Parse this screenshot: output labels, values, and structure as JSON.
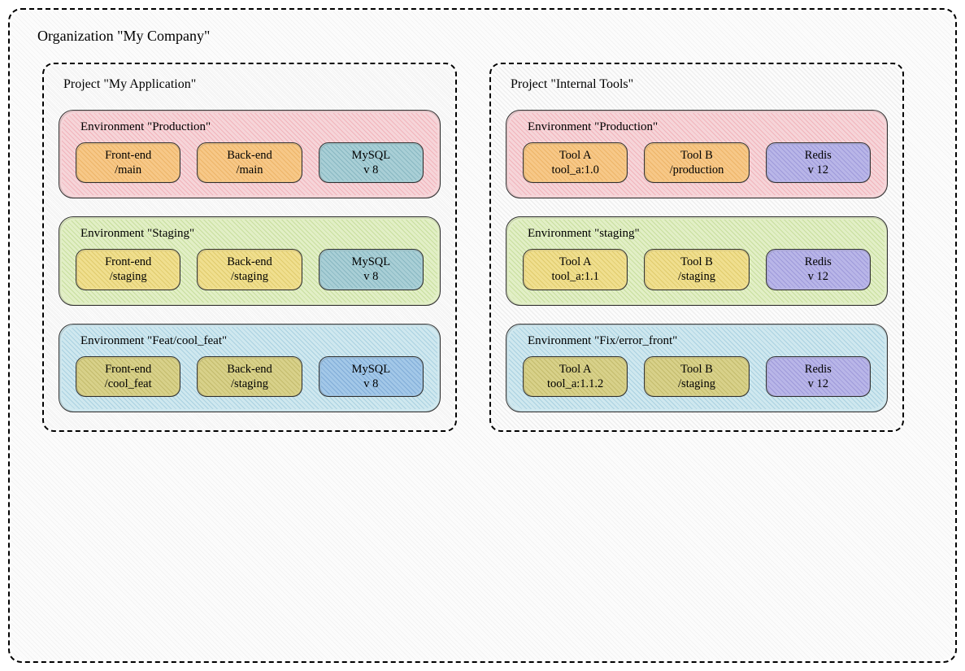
{
  "organization": {
    "title": "Organization \"My Company\""
  },
  "colors": {
    "env_production_fill": "#f6d5d9",
    "env_production_hatch": "rgba(220,60,80,0.22)",
    "env_staging_fill": "#e2efc6",
    "env_staging_hatch": "rgba(120,170,40,0.25)",
    "env_feature_fill": "#cfe8ef",
    "env_feature_hatch": "rgba(60,140,180,0.25)",
    "svc_orange_fill": "#f7c888",
    "svc_orange_hatch": "rgba(210,130,20,0.28)",
    "svc_teal_fill": "#a9cfd6",
    "svc_teal_hatch": "rgba(50,120,140,0.28)",
    "svc_yellow_fill": "#f0df8f",
    "svc_yellow_hatch": "rgba(180,150,20,0.28)",
    "svc_olive_fill": "#d8d18a",
    "svc_olive_hatch": "rgba(140,130,30,0.28)",
    "svc_blue_fill": "#a3c8e8",
    "svc_blue_hatch": "rgba(40,100,170,0.28)",
    "svc_purple_fill": "#b9b6e8",
    "svc_purple_hatch": "rgba(90,80,180,0.28)"
  },
  "projects": [
    {
      "title": "Project \"My Application\"",
      "environments": [
        {
          "title": "Environment \"Production\"",
          "fill": "env_production",
          "services": [
            {
              "line1": "Front-end",
              "line2": "/main",
              "color": "svc_orange"
            },
            {
              "line1": "Back-end",
              "line2": "/main",
              "color": "svc_orange"
            },
            {
              "line1": "MySQL",
              "line2": "v 8",
              "color": "svc_teal"
            }
          ]
        },
        {
          "title": "Environment \"Staging\"",
          "fill": "env_staging",
          "services": [
            {
              "line1": "Front-end",
              "line2": "/staging",
              "color": "svc_yellow"
            },
            {
              "line1": "Back-end",
              "line2": "/staging",
              "color": "svc_yellow"
            },
            {
              "line1": "MySQL",
              "line2": "v 8",
              "color": "svc_teal"
            }
          ]
        },
        {
          "title": "Environment \"Feat/cool_feat\"",
          "fill": "env_feature",
          "services": [
            {
              "line1": "Front-end",
              "line2": "/cool_feat",
              "color": "svc_olive"
            },
            {
              "line1": "Back-end",
              "line2": "/staging",
              "color": "svc_olive"
            },
            {
              "line1": "MySQL",
              "line2": "v 8",
              "color": "svc_blue"
            }
          ]
        }
      ]
    },
    {
      "title": "Project \"Internal Tools\"",
      "environments": [
        {
          "title": "Environment \"Production\"",
          "fill": "env_production",
          "services": [
            {
              "line1": "Tool A",
              "line2": "tool_a:1.0",
              "color": "svc_orange"
            },
            {
              "line1": "Tool B",
              "line2": "/production",
              "color": "svc_orange"
            },
            {
              "line1": "Redis",
              "line2": "v 12",
              "color": "svc_purple"
            }
          ]
        },
        {
          "title": "Environment \"staging\"",
          "fill": "env_staging",
          "services": [
            {
              "line1": "Tool A",
              "line2": "tool_a:1.1",
              "color": "svc_yellow"
            },
            {
              "line1": "Tool B",
              "line2": "/staging",
              "color": "svc_yellow"
            },
            {
              "line1": "Redis",
              "line2": "v 12",
              "color": "svc_purple"
            }
          ]
        },
        {
          "title": "Environment \"Fix/error_front\"",
          "fill": "env_feature",
          "services": [
            {
              "line1": "Tool A",
              "line2": "tool_a:1.1.2",
              "color": "svc_olive"
            },
            {
              "line1": "Tool B",
              "line2": "/staging",
              "color": "svc_olive"
            },
            {
              "line1": "Redis",
              "line2": "v 12",
              "color": "svc_purple"
            }
          ]
        }
      ]
    }
  ]
}
